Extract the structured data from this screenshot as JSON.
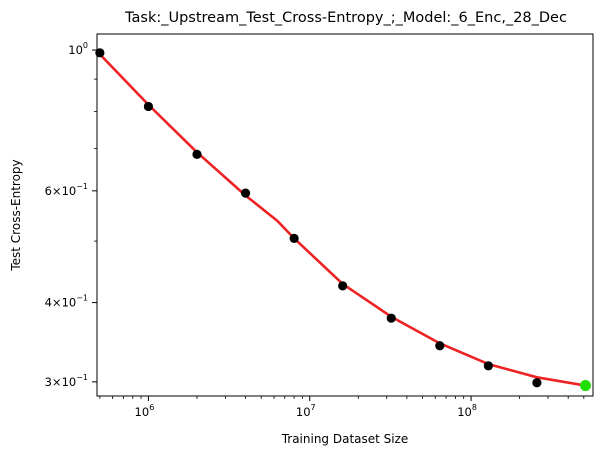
{
  "chart_data": {
    "type": "scatter",
    "title": "Task:_Upstream_Test_Cross-Entropy_;_Model:_6_Enc,_28_Dec",
    "xlabel": "Training Dataset Size",
    "ylabel": "Test Cross-Entropy",
    "xscale": "log",
    "yscale": "log",
    "xlim": [
      480000,
      570000000
    ],
    "ylim": [
      0.285,
      1.06
    ],
    "grid": false,
    "x_ticks": [
      {
        "value": 1000000,
        "base": "10",
        "exp": "6"
      },
      {
        "value": 10000000,
        "base": "10",
        "exp": "7"
      },
      {
        "value": 100000000,
        "base": "10",
        "exp": "8"
      }
    ],
    "y_ticks": [
      {
        "value": 1.0,
        "mantissa": "",
        "base": "10",
        "exp": "0"
      },
      {
        "value": 0.6,
        "mantissa": "6×",
        "base": "10",
        "exp": "−1"
      },
      {
        "value": 0.4,
        "mantissa": "4×",
        "base": "10",
        "exp": "−1"
      },
      {
        "value": 0.3,
        "mantissa": "3×",
        "base": "10",
        "exp": "−1"
      }
    ],
    "series": [
      {
        "kind": "points",
        "color": "#000000",
        "x": [
          500000,
          1000000,
          2000000,
          4000000,
          8000000,
          16000000,
          32000000,
          64000000,
          128000000,
          256000000
        ],
        "y": [
          0.99,
          0.815,
          0.685,
          0.595,
          0.505,
          0.425,
          0.378,
          0.342,
          0.318,
          0.299
        ]
      },
      {
        "kind": "points",
        "color": "#22dd00",
        "x": [
          512000000
        ],
        "y": [
          0.296
        ]
      },
      {
        "kind": "line",
        "color": "#ee2222",
        "x": [
          500000,
          1000000,
          2000000,
          4000000,
          6300000,
          8000000,
          16000000,
          32000000,
          64000000,
          128000000,
          256000000,
          512000000
        ],
        "y": [
          0.985,
          0.82,
          0.69,
          0.59,
          0.538,
          0.505,
          0.428,
          0.38,
          0.345,
          0.32,
          0.305,
          0.296
        ]
      }
    ]
  }
}
